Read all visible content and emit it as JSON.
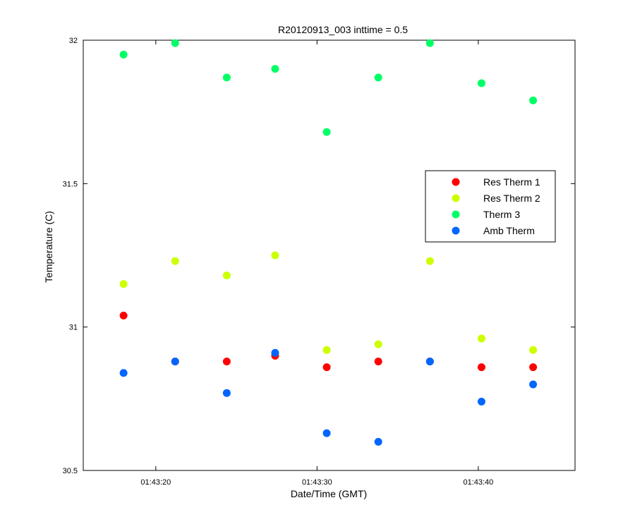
{
  "chart_data": {
    "type": "scatter",
    "title": "R20120913_003 inttime = 0.5",
    "xlabel": "Date/Time (GMT)",
    "ylabel": "Temperature (C)",
    "xlim": [
      "01:43:15.5",
      "01:43:46"
    ],
    "ylim": [
      30.5,
      32
    ],
    "xticks": [
      "01:43:20",
      "01:43:30",
      "01:43:40"
    ],
    "yticks": [
      30.5,
      31,
      31.5,
      32
    ],
    "yticklabels": [
      "30.5",
      "31",
      "31.5",
      "32"
    ],
    "grid": false,
    "legend_position": "right",
    "x": [
      "01:43:18",
      "01:43:21.2",
      "01:43:24.4",
      "01:43:27.4",
      "01:43:30.6",
      "01:43:33.8",
      "01:43:37",
      "01:43:40.2",
      "01:43:43.4"
    ],
    "series": [
      {
        "name": "Res Therm 1",
        "color": "#ff0000",
        "values": [
          31.04,
          30.88,
          30.88,
          30.9,
          30.86,
          30.88,
          30.88,
          30.86,
          30.86
        ]
      },
      {
        "name": "Res Therm 2",
        "color": "#ccff00",
        "values": [
          31.15,
          31.23,
          31.18,
          31.25,
          30.92,
          30.94,
          31.23,
          30.96,
          30.92
        ]
      },
      {
        "name": "Therm 3",
        "color": "#00ff66",
        "values": [
          31.95,
          31.99,
          31.87,
          31.9,
          31.68,
          31.87,
          31.99,
          31.85,
          31.79
        ]
      },
      {
        "name": "Amb Therm",
        "color": "#0066ff",
        "values": [
          30.84,
          30.88,
          30.77,
          30.91,
          30.63,
          30.6,
          30.88,
          30.74,
          30.8
        ]
      }
    ]
  }
}
